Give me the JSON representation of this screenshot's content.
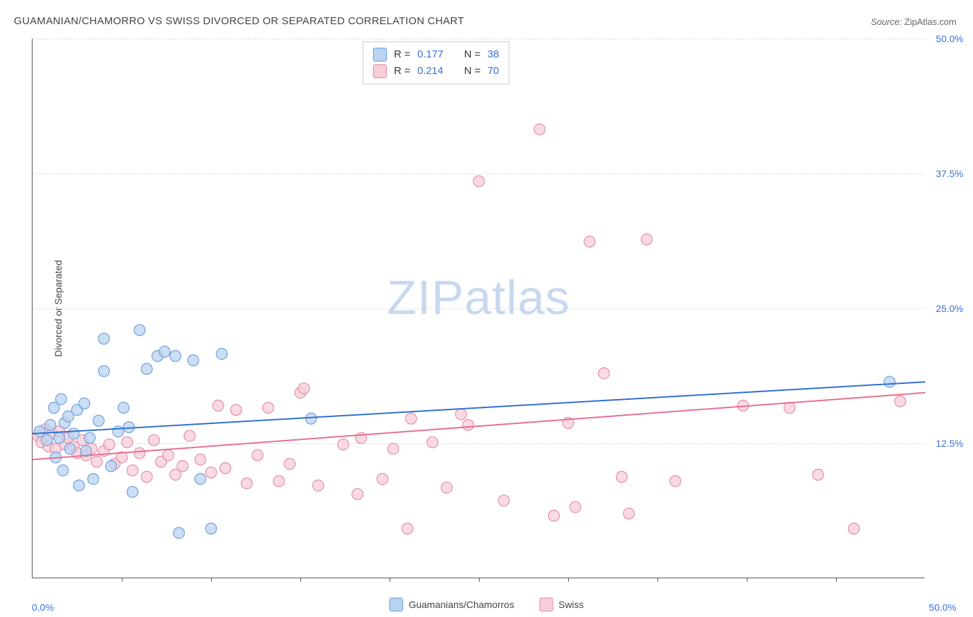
{
  "title": "GUAMANIAN/CHAMORRO VS SWISS DIVORCED OR SEPARATED CORRELATION CHART",
  "source_label": "Source:",
  "source_value": "ZipAtlas.com",
  "ylabel": "Divorced or Separated",
  "watermark_bold": "ZIP",
  "watermark_light": "atlas",
  "chart": {
    "type": "scatter",
    "xlim": [
      0,
      50
    ],
    "ylim": [
      0,
      50
    ],
    "xticks_minor": [
      5,
      10,
      15,
      20,
      25,
      30,
      35,
      40,
      45
    ],
    "ytick_labels": [
      "12.5%",
      "25.0%",
      "37.5%",
      "50.0%"
    ],
    "ytick_values": [
      12.5,
      25.0,
      37.5,
      50.0
    ],
    "xtick_left_label": "0.0%",
    "xtick_right_label": "50.0%",
    "background_color": "#ffffff",
    "grid_color": "#dddddd",
    "axis_color": "#555555",
    "marker_radius": 8,
    "marker_stroke_width": 1.2,
    "line_width": 2,
    "series": [
      {
        "name": "Guamanians/Chamorros",
        "fill": "#b9d3f0",
        "stroke": "#6fa0de",
        "line_color": "#2f6fd0",
        "R": "0.177",
        "N": "38",
        "trend": {
          "x1": 0,
          "y1": 13.4,
          "x2": 50,
          "y2": 18.2
        },
        "points": [
          [
            0.4,
            13.6
          ],
          [
            0.8,
            12.8
          ],
          [
            1.0,
            14.2
          ],
          [
            1.2,
            15.8
          ],
          [
            1.3,
            11.2
          ],
          [
            1.5,
            13.0
          ],
          [
            1.6,
            16.6
          ],
          [
            1.7,
            10.0
          ],
          [
            1.8,
            14.4
          ],
          [
            2.0,
            15.0
          ],
          [
            2.1,
            12.0
          ],
          [
            2.3,
            13.4
          ],
          [
            2.5,
            15.6
          ],
          [
            2.6,
            8.6
          ],
          [
            2.9,
            16.2
          ],
          [
            3.0,
            11.8
          ],
          [
            3.2,
            13.0
          ],
          [
            3.4,
            9.2
          ],
          [
            3.7,
            14.6
          ],
          [
            4.0,
            19.2
          ],
          [
            4.0,
            22.2
          ],
          [
            4.4,
            10.4
          ],
          [
            4.8,
            13.6
          ],
          [
            5.1,
            15.8
          ],
          [
            5.4,
            14.0
          ],
          [
            5.6,
            8.0
          ],
          [
            6.0,
            23.0
          ],
          [
            6.4,
            19.4
          ],
          [
            7.0,
            20.6
          ],
          [
            7.4,
            21.0
          ],
          [
            8.0,
            20.6
          ],
          [
            8.2,
            4.2
          ],
          [
            9.0,
            20.2
          ],
          [
            9.4,
            9.2
          ],
          [
            10.0,
            4.6
          ],
          [
            10.6,
            20.8
          ],
          [
            15.6,
            14.8
          ],
          [
            48.0,
            18.2
          ]
        ]
      },
      {
        "name": "Swiss",
        "fill": "#f7cdd8",
        "stroke": "#e38fa5",
        "line_color": "#e76f8f",
        "R": "0.214",
        "N": "70",
        "trend": {
          "x1": 0,
          "y1": 11.0,
          "x2": 50,
          "y2": 17.2
        },
        "points": [
          [
            0.3,
            13.2
          ],
          [
            0.5,
            12.6
          ],
          [
            0.7,
            13.8
          ],
          [
            0.9,
            12.2
          ],
          [
            1.1,
            13.4
          ],
          [
            1.3,
            12.0
          ],
          [
            1.5,
            13.6
          ],
          [
            1.8,
            12.4
          ],
          [
            2.0,
            13.0
          ],
          [
            2.3,
            12.2
          ],
          [
            2.5,
            11.6
          ],
          [
            2.8,
            12.8
          ],
          [
            3.0,
            11.4
          ],
          [
            3.3,
            12.0
          ],
          [
            3.6,
            10.8
          ],
          [
            4.0,
            11.8
          ],
          [
            4.3,
            12.4
          ],
          [
            4.6,
            10.6
          ],
          [
            5.0,
            11.2
          ],
          [
            5.3,
            12.6
          ],
          [
            5.6,
            10.0
          ],
          [
            6.0,
            11.6
          ],
          [
            6.4,
            9.4
          ],
          [
            6.8,
            12.8
          ],
          [
            7.2,
            10.8
          ],
          [
            7.6,
            11.4
          ],
          [
            8.0,
            9.6
          ],
          [
            8.4,
            10.4
          ],
          [
            8.8,
            13.2
          ],
          [
            9.4,
            11.0
          ],
          [
            10.0,
            9.8
          ],
          [
            10.4,
            16.0
          ],
          [
            10.8,
            10.2
          ],
          [
            11.4,
            15.6
          ],
          [
            12.0,
            8.8
          ],
          [
            12.6,
            11.4
          ],
          [
            13.2,
            15.8
          ],
          [
            13.8,
            9.0
          ],
          [
            14.4,
            10.6
          ],
          [
            15.0,
            17.2
          ],
          [
            15.2,
            17.6
          ],
          [
            16.0,
            8.6
          ],
          [
            17.4,
            12.4
          ],
          [
            18.2,
            7.8
          ],
          [
            18.4,
            13.0
          ],
          [
            19.6,
            9.2
          ],
          [
            20.2,
            12.0
          ],
          [
            21.0,
            4.6
          ],
          [
            21.2,
            14.8
          ],
          [
            22.4,
            12.6
          ],
          [
            23.2,
            8.4
          ],
          [
            24.0,
            15.2
          ],
          [
            24.4,
            14.2
          ],
          [
            25.0,
            36.8
          ],
          [
            26.4,
            7.2
          ],
          [
            28.4,
            41.6
          ],
          [
            29.2,
            5.8
          ],
          [
            30.0,
            14.4
          ],
          [
            30.4,
            6.6
          ],
          [
            31.2,
            31.2
          ],
          [
            32.0,
            19.0
          ],
          [
            33.0,
            9.4
          ],
          [
            33.4,
            6.0
          ],
          [
            34.4,
            31.4
          ],
          [
            36.0,
            9.0
          ],
          [
            39.8,
            16.0
          ],
          [
            42.4,
            15.8
          ],
          [
            44.0,
            9.6
          ],
          [
            46.0,
            4.6
          ],
          [
            48.6,
            16.4
          ]
        ]
      }
    ]
  },
  "bottom_legend": [
    {
      "label": "Guamanians/Chamorros",
      "fill": "#b9d3f0",
      "stroke": "#6fa0de"
    },
    {
      "label": "Swiss",
      "fill": "#f7cdd8",
      "stroke": "#e38fa5"
    }
  ]
}
